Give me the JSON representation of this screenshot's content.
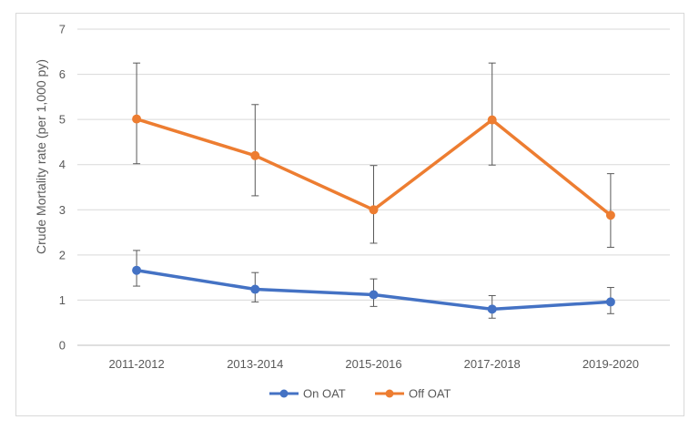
{
  "chart_data": {
    "type": "line",
    "title": "",
    "xlabel": "",
    "ylabel": "Crude Mortality rate (per 1,000 py)",
    "categories": [
      "2011-2012",
      "2013-2014",
      "2015-2016",
      "2017-2018",
      "2019-2020"
    ],
    "ylim": [
      0,
      7
    ],
    "yticks": [
      "0",
      "1",
      "2",
      "3",
      "4",
      "5",
      "6",
      "7"
    ],
    "grid": true,
    "legend": "bottom-center",
    "series": [
      {
        "name": "On OAT",
        "color": "#4472C4",
        "values": [
          1.66,
          1.24,
          1.12,
          0.8,
          0.96
        ],
        "error_low": [
          1.31,
          0.96,
          0.86,
          0.6,
          0.7
        ],
        "error_high": [
          2.1,
          1.61,
          1.47,
          1.1,
          1.28
        ]
      },
      {
        "name": "Off OAT",
        "color": "#ED7D31",
        "values": [
          5.01,
          4.2,
          3.0,
          4.99,
          2.88
        ],
        "error_low": [
          4.02,
          3.31,
          2.26,
          3.99,
          2.17
        ],
        "error_high": [
          6.25,
          5.33,
          3.98,
          6.25,
          3.8
        ]
      }
    ],
    "error_bar_color": "#595959"
  }
}
